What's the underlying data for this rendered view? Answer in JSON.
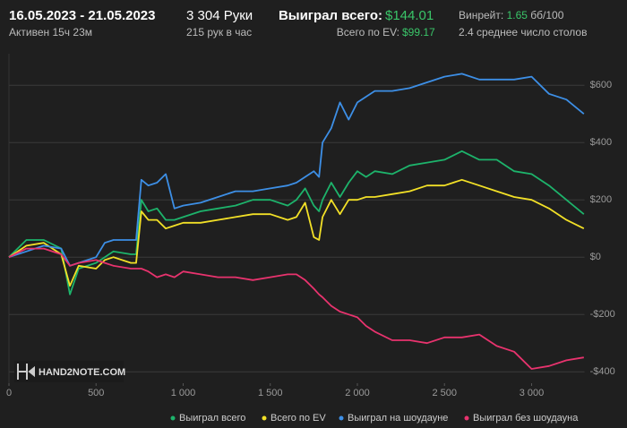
{
  "header": {
    "dates": "16.05.2023 - 21.05.2023",
    "active": "Активен 15ч 23м",
    "hands": "3 304 Руки",
    "hands_per_hour": "215 рук в час",
    "won_label": "Выиграл всего:",
    "won_value": "$144.01",
    "ev_label": "Всего по EV:",
    "ev_value": "$99.17",
    "winrate_label": "Винрейт:",
    "winrate_value": "1.65",
    "winrate_unit": "бб/100",
    "tables": "2.4 среднее число столов"
  },
  "chart_data": {
    "type": "line",
    "watermark": "HAND2NOTE.COM",
    "x": [
      0,
      100,
      200,
      300,
      350,
      400,
      500,
      550,
      600,
      700,
      730,
      760,
      800,
      850,
      900,
      950,
      1000,
      1100,
      1200,
      1300,
      1400,
      1500,
      1600,
      1650,
      1700,
      1750,
      1780,
      1800,
      1850,
      1900,
      1950,
      2000,
      2050,
      2100,
      2200,
      2300,
      2400,
      2500,
      2600,
      2700,
      2800,
      2900,
      3000,
      3100,
      3200,
      3300
    ],
    "series": [
      {
        "name": "Выиграл всего",
        "color": "#1db36b",
        "values": [
          0,
          60,
          60,
          30,
          -130,
          -40,
          -20,
          0,
          20,
          10,
          10,
          200,
          160,
          170,
          130,
          130,
          140,
          160,
          170,
          180,
          200,
          200,
          180,
          200,
          240,
          180,
          160,
          200,
          260,
          210,
          260,
          300,
          280,
          300,
          290,
          320,
          330,
          340,
          370,
          340,
          340,
          300,
          290,
          250,
          200,
          150
        ]
      },
      {
        "name": "Всего по EV",
        "color": "#f2e027",
        "values": [
          0,
          40,
          50,
          10,
          -100,
          -30,
          -40,
          -10,
          0,
          -20,
          -20,
          160,
          130,
          130,
          100,
          110,
          120,
          120,
          130,
          140,
          150,
          150,
          130,
          140,
          190,
          70,
          60,
          140,
          200,
          150,
          200,
          200,
          210,
          210,
          220,
          230,
          250,
          250,
          270,
          250,
          230,
          210,
          200,
          170,
          130,
          100
        ]
      },
      {
        "name": "Выиграл на шоудауне",
        "color": "#3d8fe6",
        "values": [
          0,
          20,
          40,
          30,
          -30,
          -20,
          0,
          50,
          60,
          60,
          60,
          270,
          250,
          260,
          290,
          170,
          180,
          190,
          210,
          230,
          230,
          240,
          250,
          260,
          280,
          300,
          280,
          400,
          450,
          540,
          480,
          540,
          560,
          580,
          580,
          590,
          610,
          630,
          640,
          620,
          620,
          620,
          630,
          570,
          550,
          500
        ]
      },
      {
        "name": "Выиграл без шоудауна",
        "color": "#e8336e",
        "values": [
          0,
          30,
          30,
          10,
          -30,
          -20,
          -10,
          -20,
          -30,
          -40,
          -40,
          -40,
          -50,
          -70,
          -60,
          -70,
          -50,
          -60,
          -70,
          -70,
          -80,
          -70,
          -60,
          -60,
          -80,
          -110,
          -130,
          -140,
          -170,
          -190,
          -200,
          -210,
          -240,
          -260,
          -290,
          -290,
          -300,
          -280,
          -280,
          -270,
          -310,
          -330,
          -390,
          -380,
          -360,
          -350
        ]
      }
    ],
    "xlim": [
      0,
      3304
    ],
    "xticks": [
      0,
      500,
      {
        "value": 1000,
        "label": "1 000"
      },
      {
        "value": 1500,
        "label": "1 500"
      },
      {
        "value": 2000,
        "label": "2 000"
      },
      {
        "value": 2500,
        "label": "2 500"
      },
      {
        "value": 3000,
        "label": "3 000"
      }
    ],
    "ylim": [
      -440,
      710
    ],
    "yticks": [
      {
        "value": -400,
        "label": "-$400"
      },
      {
        "value": -200,
        "label": "-$200"
      },
      {
        "value": 0,
        "label": "$0"
      },
      {
        "value": 200,
        "label": "$200"
      },
      {
        "value": 400,
        "label": "$400"
      },
      {
        "value": 600,
        "label": "$600"
      }
    ],
    "grid": true,
    "legend": "bottom"
  }
}
